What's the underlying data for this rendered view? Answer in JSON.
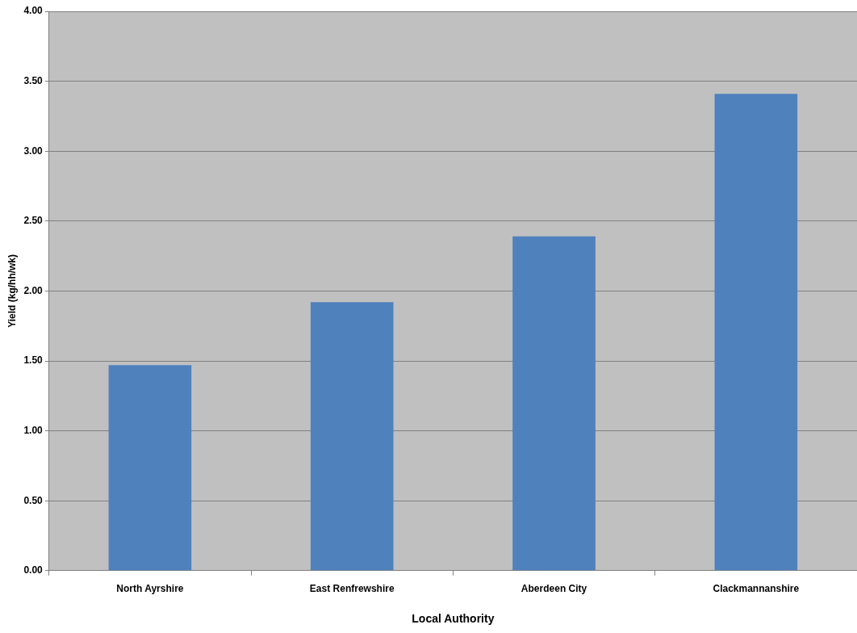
{
  "chart_data": {
    "type": "bar",
    "xlabel": "Local Authority",
    "ylabel": "Yield (kg/hh/wk)",
    "categories": [
      "North Ayrshire",
      "East Renfrewshire",
      "Aberdeen City",
      "Clackmannanshire"
    ],
    "values": [
      1.47,
      1.92,
      2.39,
      3.41
    ],
    "color": "#4f81bd",
    "ylim": [
      0,
      4
    ],
    "yticks": [
      {
        "value": 0,
        "label": "0.00"
      },
      {
        "value": 0.5,
        "label": "0.50"
      },
      {
        "value": 1,
        "label": "1.00"
      },
      {
        "value": 1.5,
        "label": "1.50"
      },
      {
        "value": 2,
        "label": "2.00"
      },
      {
        "value": 2.5,
        "label": "2.50"
      },
      {
        "value": 3,
        "label": "3.00"
      },
      {
        "value": 3.5,
        "label": "3.50"
      },
      {
        "value": 4,
        "label": "4.00"
      }
    ],
    "grid": "y",
    "legend": false
  }
}
